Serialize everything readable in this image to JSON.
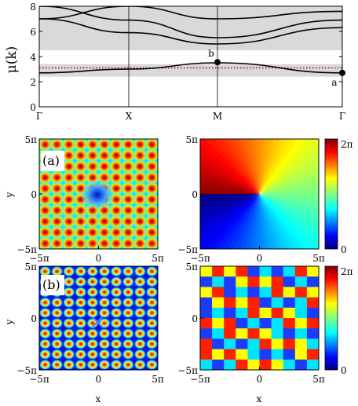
{
  "panels": {
    "band": {
      "ylabel": "μ(k)",
      "y_ticks": [
        "0",
        "2",
        "4",
        "6",
        "8"
      ],
      "x_ticks": [
        "Γ",
        "X",
        "M",
        "Γ"
      ],
      "point_labels": [
        "b",
        "a"
      ],
      "colors": {
        "gap_shade": "#d9d9d9",
        "dotted_line": "#d40000",
        "curve": "#000000"
      }
    },
    "density_a": {
      "label": "(a)",
      "ylabel": "y",
      "x_ticks": [
        "−5π",
        "0",
        "5π"
      ],
      "y_ticks": [
        "5π",
        "0",
        "−5π"
      ]
    },
    "phase_a": {
      "x_ticks": [
        "−5π",
        "0",
        "5π"
      ],
      "y_ticks": [
        "5π",
        "0",
        "−5π"
      ],
      "colorbar_ticks": [
        "2π",
        "0"
      ]
    },
    "density_b": {
      "label": "(b)",
      "ylabel": "y",
      "xlabel": "x",
      "x_ticks": [
        "−5π",
        "0",
        "5π"
      ],
      "y_ticks": [
        "5π",
        "0",
        "−5π"
      ]
    },
    "phase_b": {
      "xlabel": "x",
      "x_ticks": [
        "−5π",
        "0",
        "5π"
      ],
      "y_ticks": [
        "5π",
        "0",
        "−5π"
      ],
      "colorbar_ticks": [
        "2π",
        "0"
      ]
    }
  },
  "chart_data": {
    "type": "line",
    "title": "",
    "xlabel": "",
    "ylabel": "μ(k)",
    "x": [
      "Γ",
      "X",
      "M",
      "Γ"
    ],
    "ylim": [
      0,
      8
    ],
    "shaded_bands": [
      [
        2.4,
        3.4
      ],
      [
        4.5,
        8.0
      ]
    ],
    "dotted_level": 3.1,
    "series": [
      {
        "values": [
          2.7,
          3.0,
          3.5,
          2.7
        ]
      },
      {
        "values": [
          7.0,
          5.9,
          5.0,
          6.3
        ]
      },
      {
        "values": [
          7.0,
          8.0,
          7.0,
          7.6
        ]
      },
      {
        "values": [
          8.0,
          6.9,
          5.5,
          6.9
        ]
      }
    ],
    "marked_points": [
      {
        "label": "b",
        "x": "M",
        "y": 3.55
      },
      {
        "label": "a",
        "x": "Γ",
        "y": 2.7
      }
    ],
    "grid": false,
    "legend": "none"
  }
}
